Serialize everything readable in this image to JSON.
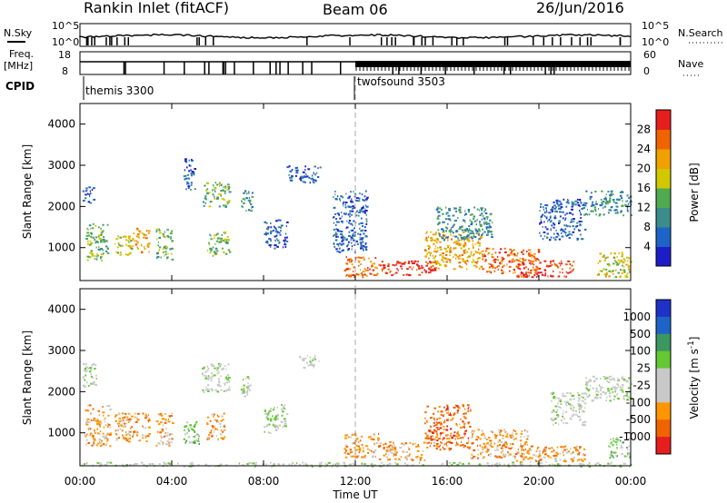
{
  "header": {
    "station": "Rankin Inlet (fitACF)",
    "beam": "Beam 06",
    "date": "26/Jun/2016"
  },
  "nsky_panel": {
    "left_label": "N.Sky",
    "right_label": "N.Search",
    "left_ticks": [
      "10^5",
      "10^0"
    ],
    "right_ticks": [
      "10^5",
      "10^0"
    ]
  },
  "freq_panel": {
    "left_label_1": "Freq.",
    "left_label_2": "[MHz]",
    "right_label": "Nave",
    "left_ticks": [
      "18",
      "8"
    ],
    "right_ticks": [
      "60",
      "0"
    ]
  },
  "cpid_panel": {
    "label": "CPID",
    "programs": [
      {
        "name": "themis 3300",
        "start_hour": 0
      },
      {
        "name": "twofsound 3503",
        "start_hour": 12
      }
    ]
  },
  "colors": {
    "power_scale": [
      "#1e1ec8",
      "#1e64c8",
      "#3c8c8c",
      "#50aa50",
      "#d2c800",
      "#f0a000",
      "#f06400",
      "#e61e1e"
    ],
    "velocity_scale": [
      "#1e32c8",
      "#1e64c8",
      "#3c9660",
      "#64c832",
      "#c8c8c8",
      "#c8c8c8",
      "#ff9600",
      "#f06400",
      "#e61e1e"
    ]
  },
  "chart_data": [
    {
      "type": "heatmap",
      "title": "",
      "xlabel": "",
      "ylabel": "Slant Range [km]",
      "x_range_hours": [
        0,
        24
      ],
      "ylim": [
        200,
        4500
      ],
      "yticks": [
        1000,
        2000,
        3000,
        4000
      ],
      "colorbar": {
        "label": "Power [dB]",
        "range": [
          0,
          32
        ],
        "ticks": [
          4,
          8,
          12,
          16,
          20,
          24,
          28
        ]
      },
      "patches": [
        {
          "t0": 0.2,
          "t1": 1.2,
          "r0": 700,
          "r1": 1600,
          "level": 3
        },
        {
          "t0": 0.1,
          "t1": 0.6,
          "r0": 2100,
          "r1": 2500,
          "level": 1
        },
        {
          "t0": 1.5,
          "t1": 2.3,
          "r0": 800,
          "r1": 1300,
          "level": 4
        },
        {
          "t0": 2.3,
          "t1": 3.0,
          "r0": 900,
          "r1": 1500,
          "level": 5
        },
        {
          "t0": 3.3,
          "t1": 4.0,
          "r0": 700,
          "r1": 1500,
          "level": 3
        },
        {
          "t0": 4.5,
          "t1": 5.0,
          "r0": 2400,
          "r1": 3200,
          "level": 1
        },
        {
          "t0": 5.3,
          "t1": 6.5,
          "r0": 2000,
          "r1": 2600,
          "level": 3
        },
        {
          "t0": 5.5,
          "t1": 6.5,
          "r0": 800,
          "r1": 1400,
          "level": 3
        },
        {
          "t0": 7.0,
          "t1": 7.5,
          "r0": 1900,
          "r1": 2400,
          "level": 2
        },
        {
          "t0": 8.0,
          "t1": 9.0,
          "r0": 1000,
          "r1": 1700,
          "level": 1
        },
        {
          "t0": 9.0,
          "t1": 10.5,
          "r0": 2600,
          "r1": 3000,
          "level": 1
        },
        {
          "t0": 11.0,
          "t1": 12.5,
          "r0": 900,
          "r1": 2400,
          "level": 1
        },
        {
          "t0": 11.5,
          "t1": 13.0,
          "r0": 300,
          "r1": 800,
          "level": 6
        },
        {
          "t0": 13.0,
          "t1": 15.5,
          "r0": 350,
          "r1": 700,
          "level": 7
        },
        {
          "t0": 15.0,
          "t1": 17.5,
          "r0": 500,
          "r1": 1400,
          "level": 5
        },
        {
          "t0": 15.5,
          "t1": 18.0,
          "r0": 1200,
          "r1": 2000,
          "level": 2
        },
        {
          "t0": 17.5,
          "t1": 20.0,
          "r0": 400,
          "r1": 1000,
          "level": 6
        },
        {
          "t0": 19.0,
          "t1": 21.5,
          "r0": 300,
          "r1": 700,
          "level": 7
        },
        {
          "t0": 20.0,
          "t1": 22.0,
          "r0": 1200,
          "r1": 2200,
          "level": 1
        },
        {
          "t0": 22.0,
          "t1": 24.0,
          "r0": 1800,
          "r1": 2400,
          "level": 2
        },
        {
          "t0": 22.5,
          "t1": 24.0,
          "r0": 300,
          "r1": 900,
          "level": 4
        }
      ]
    },
    {
      "type": "heatmap",
      "title": "",
      "xlabel": "Time UT",
      "ylabel": "Slant Range [km]",
      "x_range_hours": [
        0,
        24
      ],
      "xticks": [
        "00:00",
        "04:00",
        "08:00",
        "12:00",
        "16:00",
        "20:00",
        "00:00"
      ],
      "ylim": [
        200,
        4500
      ],
      "yticks": [
        1000,
        2000,
        3000,
        4000
      ],
      "colorbar": {
        "label": "Velocity [m s^-1]",
        "ticks": [
          "1000",
          "500",
          "100",
          "25",
          "-25",
          "-100",
          "-500",
          "-1000"
        ]
      },
      "patches": [
        {
          "t0": 0.1,
          "t1": 0.7,
          "r0": 2100,
          "r1": 2700,
          "level": 4
        },
        {
          "t0": 0.2,
          "t1": 1.3,
          "r0": 700,
          "r1": 1700,
          "level": 6
        },
        {
          "t0": 1.5,
          "t1": 3.0,
          "r0": 800,
          "r1": 1500,
          "level": 6
        },
        {
          "t0": 3.3,
          "t1": 4.0,
          "r0": 700,
          "r1": 1500,
          "level": 6
        },
        {
          "t0": 4.5,
          "t1": 5.2,
          "r0": 700,
          "r1": 1300,
          "level": 3
        },
        {
          "t0": 5.3,
          "t1": 6.5,
          "r0": 2000,
          "r1": 2700,
          "level": 4
        },
        {
          "t0": 5.5,
          "t1": 6.3,
          "r0": 800,
          "r1": 1500,
          "level": 6
        },
        {
          "t0": 7.0,
          "t1": 7.5,
          "r0": 1900,
          "r1": 2400,
          "level": 4
        },
        {
          "t0": 8.0,
          "t1": 9.0,
          "r0": 1000,
          "r1": 1700,
          "level": 4
        },
        {
          "t0": 9.5,
          "t1": 10.5,
          "r0": 2600,
          "r1": 2900,
          "level": 4
        },
        {
          "t0": 11.5,
          "t1": 13.0,
          "r0": 400,
          "r1": 1000,
          "level": 6
        },
        {
          "t0": 13.0,
          "t1": 15.0,
          "r0": 350,
          "r1": 800,
          "level": 6
        },
        {
          "t0": 15.0,
          "t1": 17.0,
          "r0": 600,
          "r1": 1700,
          "level": 7
        },
        {
          "t0": 17.0,
          "t1": 19.5,
          "r0": 400,
          "r1": 1100,
          "level": 6
        },
        {
          "t0": 19.0,
          "t1": 22.0,
          "r0": 300,
          "r1": 700,
          "level": 6
        },
        {
          "t0": 20.5,
          "t1": 22.0,
          "r0": 1200,
          "r1": 2000,
          "level": 4
        },
        {
          "t0": 22.0,
          "t1": 24.0,
          "r0": 1800,
          "r1": 2400,
          "level": 4
        },
        {
          "t0": 23.0,
          "t1": 24.0,
          "r0": 400,
          "r1": 900,
          "level": 3
        },
        {
          "t0": 0.0,
          "t1": 24.0,
          "r0": 200,
          "r1": 300,
          "level": 4
        }
      ]
    }
  ]
}
